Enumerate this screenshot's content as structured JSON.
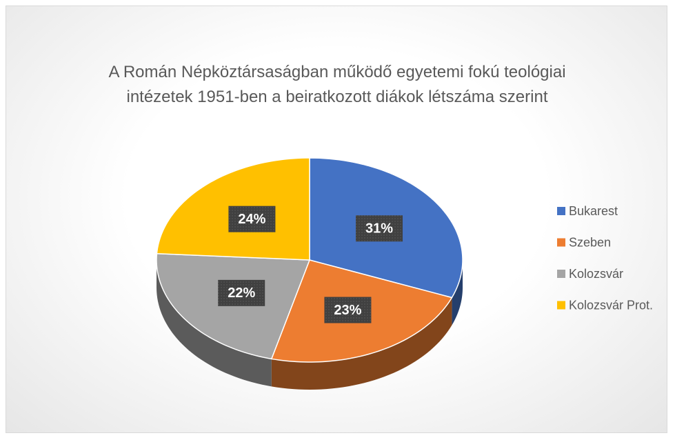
{
  "chart_data": {
    "type": "pie",
    "title": "A Román Népköztársaságban működő egyetemi fokú teológiai intézetek 1951-ben a beiratkozott diákok létszáma szerint",
    "categories": [
      "Bukarest",
      "Szeben",
      "Kolozsvár",
      "Kolozsvár Prot."
    ],
    "values": [
      31,
      23,
      22,
      24
    ],
    "value_labels": [
      "31%",
      "23%",
      "22%",
      "24%"
    ],
    "colors": [
      "#4472c4",
      "#ed7d31",
      "#a5a5a5",
      "#ffc000"
    ],
    "legend": "right"
  }
}
